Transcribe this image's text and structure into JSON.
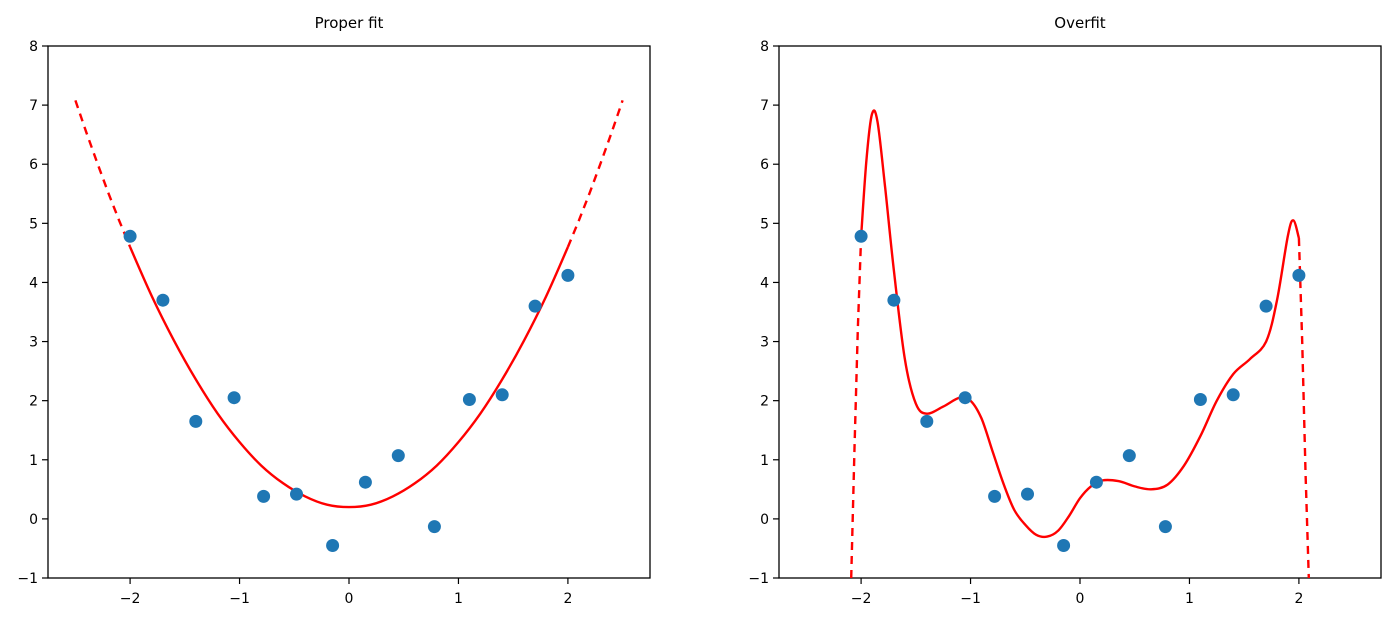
{
  "figure": {
    "background": "#ffffff",
    "colors": {
      "scatter": "#1f77b4",
      "curve": "#ff0000",
      "axis": "#000000",
      "text": "#000000"
    }
  },
  "chart_data": [
    {
      "id": "proper-fit",
      "type": "scatter",
      "title": "Proper fit",
      "xlabel": "",
      "ylabel": "",
      "xlim": [
        -2.75,
        2.75
      ],
      "ylim": [
        -1,
        8
      ],
      "xticks": [
        -2,
        -1,
        0,
        1,
        2
      ],
      "yticks": [
        -1,
        0,
        1,
        2,
        3,
        4,
        5,
        6,
        7,
        8
      ],
      "grid": false,
      "legend": null,
      "series": [
        {
          "name": "model-curve-solid",
          "type": "line",
          "style": "solid",
          "points": [
            [
              -2.0,
              4.6
            ],
            [
              -1.8,
              3.76
            ],
            [
              -1.6,
              3.02
            ],
            [
              -1.4,
              2.36
            ],
            [
              -1.2,
              1.78
            ],
            [
              -1.0,
              1.3
            ],
            [
              -0.8,
              0.9
            ],
            [
              -0.6,
              0.6
            ],
            [
              -0.4,
              0.38
            ],
            [
              -0.2,
              0.24
            ],
            [
              0.0,
              0.2
            ],
            [
              0.2,
              0.24
            ],
            [
              0.4,
              0.38
            ],
            [
              0.6,
              0.6
            ],
            [
              0.8,
              0.9
            ],
            [
              1.0,
              1.3
            ],
            [
              1.2,
              1.78
            ],
            [
              1.4,
              2.36
            ],
            [
              1.6,
              3.02
            ],
            [
              1.8,
              3.76
            ],
            [
              2.0,
              4.6
            ]
          ]
        },
        {
          "name": "extrapolation-dashed-left",
          "type": "line",
          "style": "dashed",
          "points": [
            [
              -2.5,
              7.08
            ],
            [
              -2.4,
              6.54
            ],
            [
              -2.3,
              6.02
            ],
            [
              -2.2,
              5.52
            ],
            [
              -2.1,
              5.05
            ],
            [
              -2.0,
              4.6
            ]
          ]
        },
        {
          "name": "extrapolation-dashed-right",
          "type": "line",
          "style": "dashed",
          "points": [
            [
              2.0,
              4.6
            ],
            [
              2.1,
              5.05
            ],
            [
              2.2,
              5.52
            ],
            [
              2.3,
              6.02
            ],
            [
              2.4,
              6.54
            ],
            [
              2.5,
              7.08
            ]
          ]
        },
        {
          "name": "data-points",
          "type": "scatter",
          "points": [
            [
              -2.0,
              4.78
            ],
            [
              -1.7,
              3.7
            ],
            [
              -1.4,
              1.65
            ],
            [
              -1.05,
              2.05
            ],
            [
              -0.78,
              0.38
            ],
            [
              -0.48,
              0.42
            ],
            [
              -0.15,
              -0.45
            ],
            [
              0.15,
              0.62
            ],
            [
              0.45,
              1.07
            ],
            [
              0.78,
              -0.13
            ],
            [
              1.1,
              2.02
            ],
            [
              1.4,
              2.1
            ],
            [
              1.7,
              3.6
            ],
            [
              2.0,
              4.12
            ]
          ]
        }
      ]
    },
    {
      "id": "overfit",
      "type": "scatter",
      "title": "Overfit",
      "xlabel": "",
      "ylabel": "",
      "xlim": [
        -2.75,
        2.75
      ],
      "ylim": [
        -1,
        8
      ],
      "xticks": [
        -2,
        -1,
        0,
        1,
        2
      ],
      "yticks": [
        -1,
        0,
        1,
        2,
        3,
        4,
        5,
        6,
        7,
        8
      ],
      "grid": false,
      "legend": null,
      "series": [
        {
          "name": "model-curve-solid",
          "type": "line",
          "style": "solid",
          "points": [
            [
              -2.0,
              4.77
            ],
            [
              -1.95,
              6.1
            ],
            [
              -1.9,
              6.85
            ],
            [
              -1.85,
              6.72
            ],
            [
              -1.78,
              5.6
            ],
            [
              -1.7,
              4.2
            ],
            [
              -1.6,
              2.7
            ],
            [
              -1.5,
              1.95
            ],
            [
              -1.4,
              1.78
            ],
            [
              -1.25,
              1.9
            ],
            [
              -1.1,
              2.05
            ],
            [
              -1.0,
              2.0
            ],
            [
              -0.9,
              1.7
            ],
            [
              -0.8,
              1.15
            ],
            [
              -0.7,
              0.6
            ],
            [
              -0.6,
              0.15
            ],
            [
              -0.5,
              -0.1
            ],
            [
              -0.4,
              -0.27
            ],
            [
              -0.3,
              -0.3
            ],
            [
              -0.2,
              -0.2
            ],
            [
              -0.1,
              0.05
            ],
            [
              0.0,
              0.35
            ],
            [
              0.1,
              0.55
            ],
            [
              0.2,
              0.65
            ],
            [
              0.35,
              0.64
            ],
            [
              0.5,
              0.55
            ],
            [
              0.65,
              0.5
            ],
            [
              0.8,
              0.58
            ],
            [
              0.95,
              0.9
            ],
            [
              1.1,
              1.4
            ],
            [
              1.25,
              2.0
            ],
            [
              1.4,
              2.45
            ],
            [
              1.55,
              2.7
            ],
            [
              1.7,
              3.0
            ],
            [
              1.8,
              3.7
            ],
            [
              1.9,
              4.8
            ],
            [
              1.95,
              5.05
            ],
            [
              2.0,
              4.75
            ]
          ]
        },
        {
          "name": "extrapolation-dashed-left",
          "type": "line",
          "style": "dashed",
          "points": [
            [
              -2.09,
              -1.0
            ],
            [
              -2.06,
              1.2
            ],
            [
              -2.03,
              3.2
            ],
            [
              -2.0,
              4.77
            ]
          ]
        },
        {
          "name": "extrapolation-dashed-right",
          "type": "line",
          "style": "dashed",
          "points": [
            [
              2.0,
              4.75
            ],
            [
              2.03,
              3.0
            ],
            [
              2.06,
              0.8
            ],
            [
              2.09,
              -1.0
            ]
          ]
        },
        {
          "name": "data-points",
          "type": "scatter",
          "points": [
            [
              -2.0,
              4.78
            ],
            [
              -1.7,
              3.7
            ],
            [
              -1.4,
              1.65
            ],
            [
              -1.05,
              2.05
            ],
            [
              -0.78,
              0.38
            ],
            [
              -0.48,
              0.42
            ],
            [
              -0.15,
              -0.45
            ],
            [
              0.15,
              0.62
            ],
            [
              0.45,
              1.07
            ],
            [
              0.78,
              -0.13
            ],
            [
              1.1,
              2.02
            ],
            [
              1.4,
              2.1
            ],
            [
              1.7,
              3.6
            ],
            [
              2.0,
              4.12
            ]
          ]
        }
      ]
    }
  ]
}
